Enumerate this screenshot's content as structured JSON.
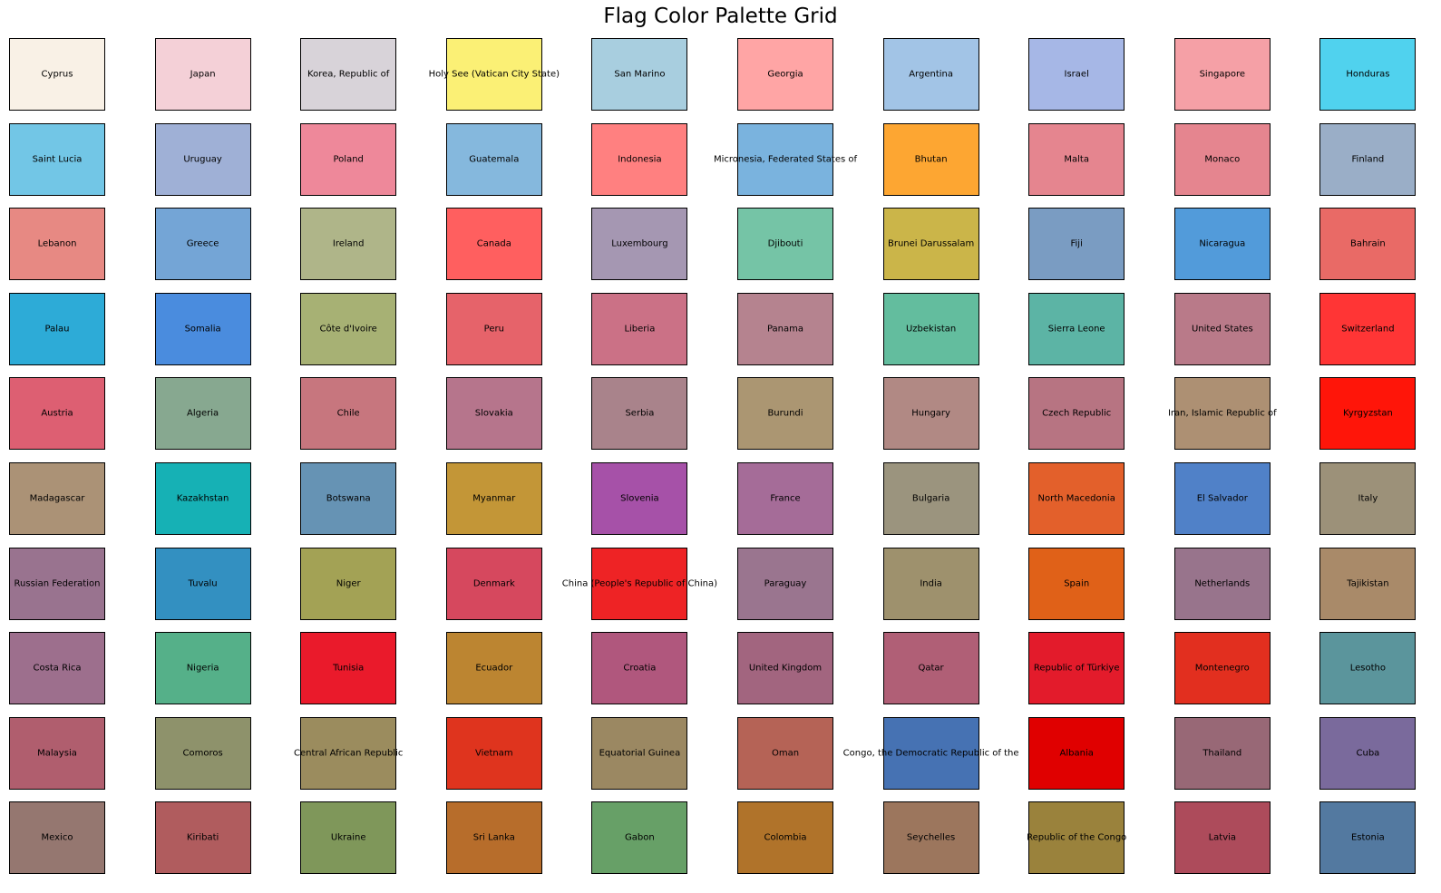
{
  "title": "Flag Color Palette Grid",
  "chart_data": {
    "type": "table",
    "title": "Flag Color Palette Grid",
    "columns": 10,
    "rows": 10,
    "cells": [
      {
        "label": "Cyprus",
        "color": "#f9f1e6"
      },
      {
        "label": "Japan",
        "color": "#f4d0d7"
      },
      {
        "label": "Korea, Republic of",
        "color": "#d8d3d9"
      },
      {
        "label": "Holy See (Vatican City State)",
        "color": "#fbf075"
      },
      {
        "label": "San Marino",
        "color": "#a8cedf"
      },
      {
        "label": "Georgia",
        "color": "#ffa5a5"
      },
      {
        "label": "Argentina",
        "color": "#a2c4e6"
      },
      {
        "label": "Israel",
        "color": "#a6b7e6"
      },
      {
        "label": "Singapore",
        "color": "#f5a0a6"
      },
      {
        "label": "Honduras",
        "color": "#50d2ee"
      },
      {
        "label": "Saint Lucia",
        "color": "#72c6e6"
      },
      {
        "label": "Uruguay",
        "color": "#9fb0d6"
      },
      {
        "label": "Poland",
        "color": "#ee889a"
      },
      {
        "label": "Guatemala",
        "color": "#85b8dd"
      },
      {
        "label": "Indonesia",
        "color": "#ff8080"
      },
      {
        "label": "Micronesia, Federated States of",
        "color": "#7ab3de"
      },
      {
        "label": "Bhutan",
        "color": "#fda632"
      },
      {
        "label": "Malta",
        "color": "#e5858f"
      },
      {
        "label": "Monaco",
        "color": "#e5858f"
      },
      {
        "label": "Finland",
        "color": "#9aaec7"
      },
      {
        "label": "Lebanon",
        "color": "#e78983"
      },
      {
        "label": "Greece",
        "color": "#74a5d6"
      },
      {
        "label": "Ireland",
        "color": "#afb589"
      },
      {
        "label": "Canada",
        "color": "#ff5f5f"
      },
      {
        "label": "Luxembourg",
        "color": "#a597b2"
      },
      {
        "label": "Djibouti",
        "color": "#75c4a6"
      },
      {
        "label": "Brunei Darussalam",
        "color": "#cbb549"
      },
      {
        "label": "Fiji",
        "color": "#7a9cc2"
      },
      {
        "label": "Nicaragua",
        "color": "#529bda"
      },
      {
        "label": "Bahrain",
        "color": "#e96a66"
      },
      {
        "label": "Palau",
        "color": "#2dabd7"
      },
      {
        "label": "Somalia",
        "color": "#4a8cde"
      },
      {
        "label": "Côte d'Ivoire",
        "color": "#a7b174"
      },
      {
        "label": "Peru",
        "color": "#e6636a"
      },
      {
        "label": "Liberia",
        "color": "#cb7186"
      },
      {
        "label": "Panama",
        "color": "#b5838f"
      },
      {
        "label": "Uzbekistan",
        "color": "#63bd9e"
      },
      {
        "label": "Sierra Leone",
        "color": "#5cb4a5"
      },
      {
        "label": "United States",
        "color": "#b97a89"
      },
      {
        "label": "Switzerland",
        "color": "#ff3535"
      },
      {
        "label": "Austria",
        "color": "#dd5f72"
      },
      {
        "label": "Algeria",
        "color": "#87a890"
      },
      {
        "label": "Chile",
        "color": "#c7767e"
      },
      {
        "label": "Slovakia",
        "color": "#b6758c"
      },
      {
        "label": "Serbia",
        "color": "#a9838b"
      },
      {
        "label": "Burundi",
        "color": "#ab9672"
      },
      {
        "label": "Hungary",
        "color": "#b18984"
      },
      {
        "label": "Czech Republic",
        "color": "#b77482"
      },
      {
        "label": "Iran, Islamic Republic of",
        "color": "#ad9073"
      },
      {
        "label": "Kyrgyzstan",
        "color": "#ff1509"
      },
      {
        "label": "Madagascar",
        "color": "#ab9276"
      },
      {
        "label": "Kazakhstan",
        "color": "#16b1b5"
      },
      {
        "label": "Botswana",
        "color": "#6693b4"
      },
      {
        "label": "Myanmar",
        "color": "#c39637"
      },
      {
        "label": "Slovenia",
        "color": "#a651a8"
      },
      {
        "label": "France",
        "color": "#a56c98"
      },
      {
        "label": "Bulgaria",
        "color": "#9b947e"
      },
      {
        "label": "North Macedonia",
        "color": "#e3602b"
      },
      {
        "label": "El Salvador",
        "color": "#5081c8"
      },
      {
        "label": "Italy",
        "color": "#9c9179"
      },
      {
        "label": "Russian Federation",
        "color": "#99738f"
      },
      {
        "label": "Tuvalu",
        "color": "#3390c1"
      },
      {
        "label": "Niger",
        "color": "#a3a255"
      },
      {
        "label": "Denmark",
        "color": "#d6485e"
      },
      {
        "label": "China (People's Republic of China)",
        "color": "#ee2325"
      },
      {
        "label": "Paraguay",
        "color": "#9a758f"
      },
      {
        "label": "India",
        "color": "#9e916d"
      },
      {
        "label": "Spain",
        "color": "#e06118"
      },
      {
        "label": "Netherlands",
        "color": "#98748c"
      },
      {
        "label": "Tajikistan",
        "color": "#a98a69"
      },
      {
        "label": "Costa Rica",
        "color": "#9d6f8d"
      },
      {
        "label": "Nigeria",
        "color": "#55b089"
      },
      {
        "label": "Tunisia",
        "color": "#ea1a2b"
      },
      {
        "label": "Ecuador",
        "color": "#bc8531"
      },
      {
        "label": "Croatia",
        "color": "#b0577d"
      },
      {
        "label": "United Kingdom",
        "color": "#a2657f"
      },
      {
        "label": "Qatar",
        "color": "#b05f76"
      },
      {
        "label": "Republic of Türkiye",
        "color": "#e31b2b"
      },
      {
        "label": "Montenegro",
        "color": "#e22f1f"
      },
      {
        "label": "Lesotho",
        "color": "#5b959c"
      },
      {
        "label": "Malaysia",
        "color": "#b05e6e"
      },
      {
        "label": "Comoros",
        "color": "#8e926b"
      },
      {
        "label": "Central African Republic",
        "color": "#9b8c5e"
      },
      {
        "label": "Vietnam",
        "color": "#df341e"
      },
      {
        "label": "Equatorial Guinea",
        "color": "#9b8862"
      },
      {
        "label": "Oman",
        "color": "#b56356"
      },
      {
        "label": "Congo, the Democratic Republic of the",
        "color": "#4672b3"
      },
      {
        "label": "Albania",
        "color": "#e00000"
      },
      {
        "label": "Thailand",
        "color": "#986876"
      },
      {
        "label": "Cuba",
        "color": "#7a6a9c"
      },
      {
        "label": "Mexico",
        "color": "#957770"
      },
      {
        "label": "Kiribati",
        "color": "#b05c5e"
      },
      {
        "label": "Ukraine",
        "color": "#7f975a"
      },
      {
        "label": "Sri Lanka",
        "color": "#b76d2b"
      },
      {
        "label": "Gabon",
        "color": "#67a067"
      },
      {
        "label": "Colombia",
        "color": "#b0732a"
      },
      {
        "label": "Seychelles",
        "color": "#9c765d"
      },
      {
        "label": "Republic of the Congo",
        "color": "#9a823c"
      },
      {
        "label": "Latvia",
        "color": "#ad4b5b"
      },
      {
        "label": "Estonia",
        "color": "#5379a0"
      }
    ]
  }
}
